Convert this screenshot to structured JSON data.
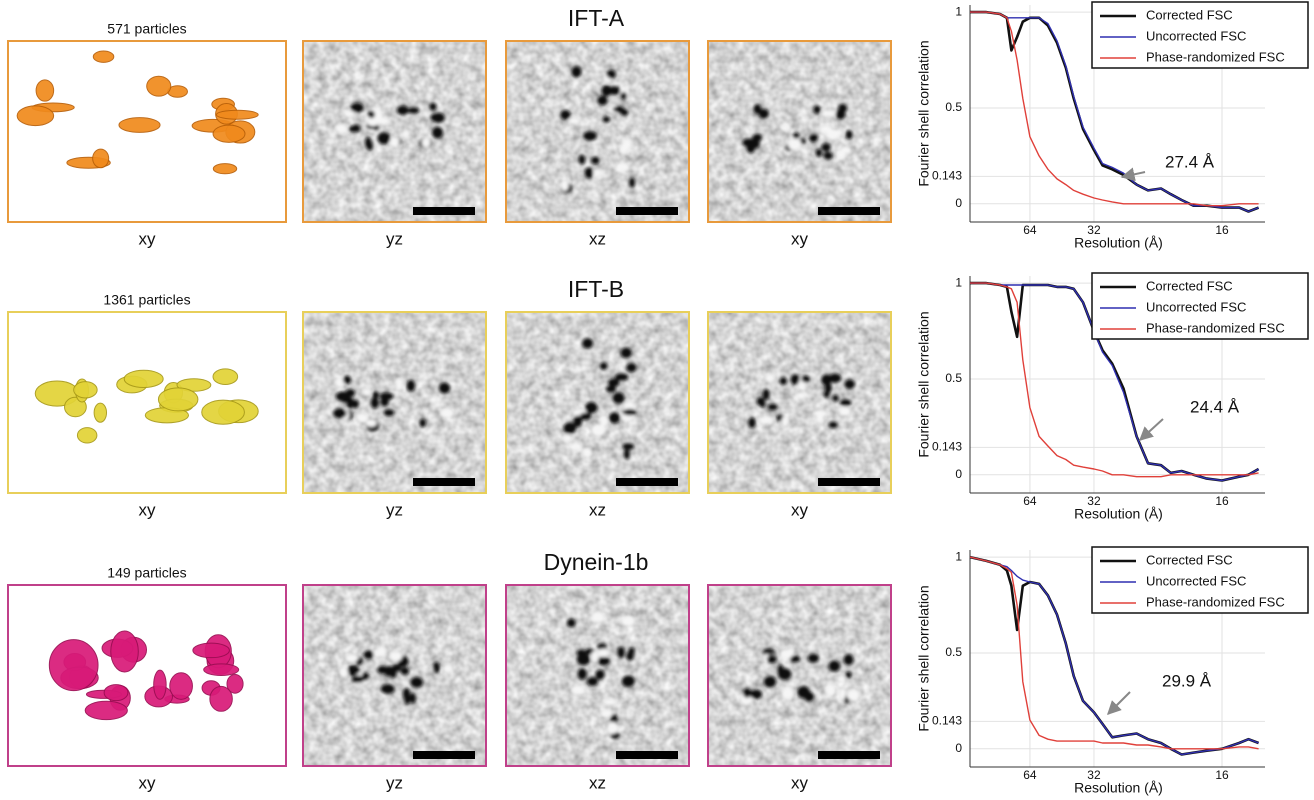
{
  "rows": [
    {
      "title": "IFT-A",
      "particles": "571 particles",
      "views": [
        "xy",
        "yz",
        "xz",
        "xy"
      ]
    },
    {
      "title": "IFT-B",
      "particles": "1361 particles",
      "views": [
        "xy",
        "yz",
        "xz",
        "xy"
      ]
    },
    {
      "title": "Dynein-1b",
      "particles": "149 particles",
      "views": [
        "xy",
        "yz",
        "xz",
        "xy"
      ]
    }
  ],
  "chart_data": [
    {
      "type": "line",
      "xlabel": "Resolution (Å)",
      "ylabel": "Fourier shell correlation",
      "xscale": "reciprocal",
      "grid": true,
      "legend": "upper right",
      "annotation": "27.4 Å",
      "xlim": [
        1000,
        13.7
      ],
      "ylim": [
        -0.095,
        1.037
      ],
      "xticks": [
        64,
        32,
        16
      ],
      "yticks": [
        0,
        0.143,
        0.5,
        1
      ],
      "x": [
        1000,
        200,
        120,
        100,
        90,
        80,
        72,
        64,
        56,
        50,
        45,
        41,
        38,
        35,
        32,
        30,
        28,
        26,
        24,
        22.5,
        21,
        20,
        19,
        18,
        17,
        16,
        15,
        14.5,
        14
      ],
      "series": [
        {
          "name": "Corrected FSC",
          "color": "#111111",
          "width": 2.6,
          "values": [
            1.0,
            1.0,
            0.99,
            0.97,
            0.8,
            0.87,
            0.95,
            0.97,
            0.97,
            0.93,
            0.84,
            0.71,
            0.55,
            0.39,
            0.28,
            0.2,
            0.18,
            0.15,
            0.1,
            0.07,
            0.08,
            0.05,
            0.02,
            -0.01,
            -0.01,
            -0.02,
            -0.02,
            -0.04,
            -0.02
          ]
        },
        {
          "name": "Uncorrected FSC",
          "color": "#2f2fb0",
          "width": 1.4,
          "values": [
            1.0,
            1.0,
            0.99,
            0.97,
            0.97,
            0.97,
            0.97,
            0.97,
            0.97,
            0.94,
            0.85,
            0.72,
            0.56,
            0.4,
            0.29,
            0.21,
            0.19,
            0.16,
            0.1,
            0.07,
            0.08,
            0.05,
            0.02,
            -0.01,
            -0.01,
            -0.02,
            -0.02,
            -0.04,
            -0.02
          ]
        },
        {
          "name": "Phase-randomized FSC",
          "color": "#e0403a",
          "width": 1.4,
          "values": [
            1.0,
            1.0,
            0.99,
            0.97,
            0.9,
            0.75,
            0.55,
            0.35,
            0.25,
            0.18,
            0.13,
            0.1,
            0.07,
            0.05,
            0.03,
            0.02,
            0.01,
            0.0,
            0.0,
            0.0,
            0.0,
            0.0,
            0.0,
            0.0,
            -0.01,
            -0.01,
            0.0,
            0.0,
            0.0
          ]
        }
      ]
    },
    {
      "type": "line",
      "xlabel": "Resolution (Å)",
      "ylabel": "Fourier shell correlation",
      "xscale": "reciprocal",
      "grid": true,
      "legend": "upper right",
      "annotation": "24.4 Å",
      "xlim": [
        1000,
        13.7
      ],
      "ylim": [
        -0.095,
        1.037
      ],
      "xticks": [
        64,
        32,
        16
      ],
      "yticks": [
        0,
        0.143,
        0.5,
        1
      ],
      "x": [
        1000,
        200,
        120,
        100,
        90,
        80,
        72,
        64,
        56,
        50,
        45,
        41,
        38,
        35,
        32,
        30,
        28,
        26,
        24,
        22.5,
        21,
        20,
        19,
        18,
        17,
        16,
        15,
        14.5,
        14
      ],
      "series": [
        {
          "name": "Corrected FSC",
          "color": "#111111",
          "width": 2.6,
          "values": [
            1.0,
            1.0,
            0.99,
            0.98,
            0.85,
            0.72,
            0.99,
            0.99,
            0.99,
            0.99,
            0.98,
            0.98,
            0.97,
            0.9,
            0.75,
            0.65,
            0.58,
            0.45,
            0.2,
            0.06,
            0.05,
            0.01,
            0.02,
            0.0,
            -0.02,
            -0.03,
            -0.01,
            0.0,
            0.03
          ]
        },
        {
          "name": "Uncorrected FSC",
          "color": "#2f2fb0",
          "width": 1.4,
          "values": [
            1.0,
            1.0,
            0.99,
            0.99,
            0.99,
            0.99,
            0.99,
            0.99,
            0.99,
            0.99,
            0.98,
            0.98,
            0.97,
            0.9,
            0.75,
            0.64,
            0.57,
            0.43,
            0.2,
            0.06,
            0.05,
            0.01,
            0.02,
            0.0,
            -0.02,
            -0.03,
            -0.01,
            0.0,
            0.03
          ]
        },
        {
          "name": "Phase-randomized FSC",
          "color": "#e0403a",
          "width": 1.4,
          "values": [
            1.0,
            1.0,
            0.99,
            0.98,
            0.97,
            0.9,
            0.6,
            0.35,
            0.2,
            0.15,
            0.1,
            0.08,
            0.05,
            0.04,
            0.03,
            0.02,
            0.0,
            0.0,
            -0.01,
            -0.01,
            -0.01,
            0.0,
            0.0,
            0.0,
            0.0,
            0.0,
            0.0,
            0.0,
            0.01
          ]
        }
      ]
    },
    {
      "type": "line",
      "xlabel": "Resolution (Å)",
      "ylabel": "Fourier shell correlation",
      "xscale": "reciprocal",
      "grid": true,
      "legend": "upper right",
      "annotation": "29.9 Å",
      "xlim": [
        1000,
        13.7
      ],
      "ylim": [
        -0.095,
        1.037
      ],
      "xticks": [
        64,
        32,
        16
      ],
      "yticks": [
        0,
        0.143,
        0.5,
        1
      ],
      "x": [
        1000,
        200,
        120,
        100,
        90,
        80,
        72,
        64,
        56,
        50,
        45,
        41,
        38,
        35,
        32,
        30,
        28,
        26,
        24,
        22.5,
        21,
        20,
        19,
        18,
        17,
        16,
        15,
        14.5,
        14
      ],
      "series": [
        {
          "name": "Corrected FSC",
          "color": "#111111",
          "width": 2.6,
          "values": [
            1.0,
            0.98,
            0.96,
            0.93,
            0.85,
            0.62,
            0.85,
            0.87,
            0.86,
            0.8,
            0.7,
            0.55,
            0.38,
            0.25,
            0.19,
            0.13,
            0.06,
            0.07,
            0.08,
            0.05,
            0.03,
            0.0,
            -0.03,
            -0.02,
            -0.01,
            0.0,
            0.03,
            0.05,
            0.03
          ]
        },
        {
          "name": "Uncorrected FSC",
          "color": "#2f2fb0",
          "width": 1.4,
          "values": [
            1.0,
            0.98,
            0.96,
            0.95,
            0.93,
            0.9,
            0.88,
            0.87,
            0.86,
            0.8,
            0.7,
            0.55,
            0.38,
            0.25,
            0.19,
            0.13,
            0.06,
            0.07,
            0.08,
            0.05,
            0.03,
            0.0,
            -0.03,
            -0.02,
            -0.01,
            0.0,
            0.03,
            0.05,
            0.03
          ]
        },
        {
          "name": "Phase-randomized FSC",
          "color": "#e0403a",
          "width": 1.4,
          "values": [
            1.0,
            0.98,
            0.96,
            0.94,
            0.92,
            0.75,
            0.35,
            0.15,
            0.07,
            0.05,
            0.04,
            0.04,
            0.04,
            0.04,
            0.04,
            0.03,
            0.03,
            0.03,
            0.02,
            0.02,
            0.01,
            0.0,
            0.0,
            0.0,
            0.0,
            0.0,
            0.01,
            0.01,
            0.0
          ]
        }
      ]
    }
  ]
}
